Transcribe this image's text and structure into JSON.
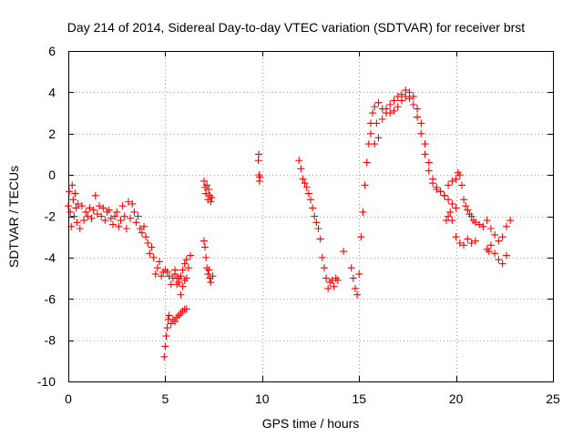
{
  "chart_data": {
    "type": "scatter",
    "title": "Day 214 of 2014, Sidereal Day-to-day VTEC variation (SDTVAR) for receiver brst",
    "xlabel": "GPS time / hours",
    "ylabel": "SDTVAR / TECUs",
    "xlim": [
      0,
      25
    ],
    "ylim": [
      -10,
      6
    ],
    "xticks": [
      0,
      5,
      10,
      15,
      20,
      25
    ],
    "yticks": [
      -10,
      -8,
      -6,
      -4,
      -2,
      0,
      2,
      4,
      6
    ],
    "xtick_labels": [
      "0",
      "5",
      "10",
      "15",
      "20",
      "25"
    ],
    "ytick_labels": [
      "-10",
      "-8",
      "-6",
      "-4",
      "-2",
      "0",
      "2",
      "4",
      "6"
    ],
    "grid": true,
    "marker": "plus",
    "marker_color": "#ff0000",
    "series": [
      {
        "name": "SDTVAR",
        "x": [
          0.0,
          0.05,
          0.1,
          0.15,
          0.2,
          0.25,
          0.3,
          0.35,
          0.4,
          0.45,
          0.5,
          0.6,
          0.7,
          0.8,
          0.9,
          1.0,
          1.1,
          1.2,
          1.3,
          1.4,
          1.5,
          1.6,
          1.7,
          1.8,
          1.9,
          2.0,
          2.1,
          2.2,
          2.3,
          2.4,
          2.5,
          2.6,
          2.7,
          2.8,
          2.9,
          3.0,
          3.1,
          3.2,
          3.3,
          3.4,
          3.5,
          3.6,
          3.7,
          3.8,
          3.9,
          4.0,
          4.1,
          4.2,
          4.3,
          4.4,
          4.5,
          4.6,
          4.7,
          4.8,
          4.9,
          5.0,
          5.1,
          5.2,
          5.3,
          5.4,
          5.5,
          5.6,
          5.7,
          5.8,
          5.9,
          6.0,
          6.1,
          4.95,
          5.0,
          5.05,
          5.1,
          5.15,
          5.2,
          5.3,
          5.4,
          5.5,
          5.6,
          5.7,
          5.8,
          5.9,
          6.0,
          6.1,
          5.5,
          5.6,
          5.7,
          5.8,
          5.9,
          6.0,
          6.1,
          6.2,
          6.3,
          7.0,
          7.05,
          7.1,
          7.15,
          7.2,
          7.25,
          7.3,
          7.35,
          7.0,
          7.05,
          7.1,
          7.15,
          7.2,
          7.25,
          7.3,
          7.35,
          7.4,
          7.45,
          9.8,
          9.82,
          9.84,
          9.86,
          9.88,
          11.9,
          12.0,
          12.1,
          12.2,
          12.3,
          12.4,
          12.5,
          12.6,
          12.7,
          12.8,
          12.9,
          13.0,
          13.1,
          13.2,
          13.3,
          13.4,
          13.5,
          13.6,
          13.7,
          13.8,
          13.9,
          14.2,
          14.6,
          14.7,
          14.8,
          14.9,
          15.0,
          15.1,
          15.2,
          15.3,
          15.4,
          15.5,
          15.6,
          15.7,
          15.8,
          15.9,
          16.0,
          16.2,
          16.4,
          16.6,
          16.8,
          17.0,
          17.2,
          17.4,
          17.6,
          17.8,
          18.0,
          18.2,
          18.4,
          18.6,
          18.8,
          19.0,
          19.2,
          19.4,
          19.6,
          19.8,
          20.0,
          20.1,
          20.2,
          20.3,
          20.4,
          20.5,
          20.6,
          20.7,
          20.8,
          20.9,
          21.0,
          21.2,
          21.4,
          21.6,
          21.8,
          22.0,
          22.2,
          22.4,
          22.6,
          22.8,
          15.6,
          15.8,
          16.0,
          16.2,
          16.4,
          16.6,
          16.8,
          17.0,
          17.2,
          17.4,
          17.6,
          17.8,
          18.0,
          18.2,
          18.4,
          18.6,
          18.8,
          19.0,
          19.2,
          19.4,
          19.6,
          19.8,
          20.0,
          19.5,
          19.6,
          19.7,
          19.8,
          20.0,
          20.2,
          20.4,
          20.6,
          20.8,
          21.0,
          21.6,
          21.7,
          21.8,
          22.0,
          22.2,
          22.4,
          22.6
        ],
        "y": [
          -1.5,
          -0.8,
          -1.8,
          -2.5,
          -0.5,
          -1.2,
          -2.0,
          -0.9,
          -1.6,
          -2.3,
          -1.4,
          -2.6,
          -1.5,
          -2.2,
          -1.8,
          -2.0,
          -1.6,
          -2.1,
          -1.7,
          -1.0,
          -1.9,
          -1.5,
          -2.0,
          -1.6,
          -2.2,
          -1.8,
          -1.7,
          -2.1,
          -2.4,
          -2.0,
          -1.8,
          -2.5,
          -2.2,
          -1.5,
          -2.0,
          -2.6,
          -1.3,
          -2.1,
          -1.4,
          -1.8,
          -2.3,
          -2.0,
          -2.6,
          -2.8,
          -2.5,
          -3.0,
          -3.3,
          -3.8,
          -3.5,
          -4.0,
          -4.8,
          -4.5,
          -4.2,
          -4.9,
          -4.7,
          -4.6,
          -4.7,
          -4.9,
          -5.3,
          -5.0,
          -4.6,
          -5.3,
          -5.0,
          -5.8,
          -5.4,
          -5.1,
          -5.0,
          -8.8,
          -8.3,
          -7.8,
          -7.4,
          -7.0,
          -6.8,
          -7.2,
          -7.0,
          -7.1,
          -6.9,
          -6.8,
          -6.7,
          -6.6,
          -6.5,
          -6.5,
          -4.8,
          -5.0,
          -5.2,
          -4.9,
          -4.6,
          -4.3,
          -4.1,
          -4.5,
          -3.9,
          -3.2,
          -3.5,
          -4.0,
          -4.5,
          -4.8,
          -4.6,
          -5.0,
          -5.2,
          -0.3,
          -0.6,
          -0.9,
          -0.5,
          -1.2,
          -0.7,
          -1.0,
          -1.3,
          -1.1,
          -4.9,
          0.7,
          1.0,
          0.0,
          -0.3,
          -0.1,
          0.7,
          0.3,
          -0.2,
          -0.4,
          -0.6,
          -0.9,
          -1.2,
          -1.6,
          -2.0,
          -2.3,
          -2.6,
          -3.1,
          -4.0,
          -4.5,
          -5.0,
          -5.5,
          -5.2,
          -5.1,
          -5.4,
          -5.0,
          -5.1,
          -3.7,
          -4.5,
          -5.0,
          -5.5,
          -5.8,
          -4.8,
          -3.0,
          -1.8,
          -0.5,
          0.6,
          1.5,
          2.5,
          3.0,
          3.3,
          2.5,
          3.5,
          3.2,
          3.0,
          3.4,
          3.6,
          3.8,
          3.9,
          4.1,
          4.0,
          3.8,
          3.2,
          2.5,
          1.5,
          0.6,
          -0.2,
          -0.6,
          -0.8,
          -1.0,
          -0.5,
          -0.3,
          -0.2,
          0.1,
          0.0,
          -0.5,
          -1.2,
          -1.5,
          -1.7,
          -1.9,
          -2.0,
          -2.2,
          -2.3,
          -2.4,
          -2.5,
          -2.2,
          -2.6,
          -2.9,
          -3.2,
          -3.0,
          -2.5,
          -2.2,
          2.0,
          1.5,
          1.8,
          2.7,
          3.2,
          3.0,
          3.1,
          3.3,
          3.6,
          3.8,
          3.7,
          3.4,
          2.8,
          2.0,
          1.0,
          0.2,
          -0.4,
          -0.7,
          -0.8,
          -1.0,
          -1.2,
          -1.4,
          -1.6,
          -2.2,
          -2.0,
          -1.8,
          -2.2,
          -3.0,
          -3.3,
          -3.4,
          -3.1,
          -3.3,
          -3.2,
          -3.6,
          -3.7,
          -3.4,
          -3.8,
          -4.1,
          -4.3,
          -3.9
        ]
      }
    ]
  }
}
